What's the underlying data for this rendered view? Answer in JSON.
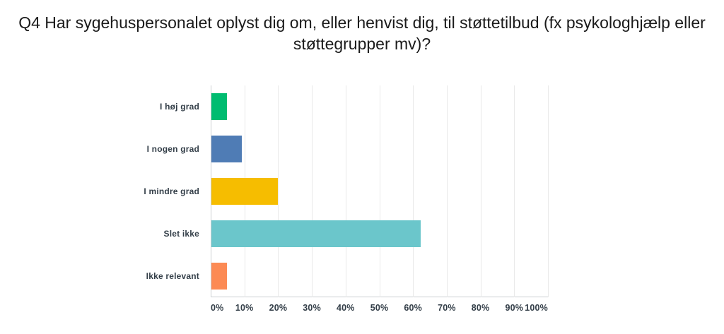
{
  "title": "Q4 Har sygehuspersonalet oplyst dig om, eller henvist dig, til støttetilbud (fx psykologhjælp eller støttegrupper mv)?",
  "chart_data": {
    "type": "bar",
    "orientation": "horizontal",
    "title": "Q4 Har sygehuspersonalet oplyst dig om, eller henvist dig, til støttetilbud (fx psykologhjælp eller støttegrupper mv)?",
    "categories": [
      "I høj grad",
      "I nogen grad",
      "I mindre grad",
      "Slet ikke",
      "Ikke relevant"
    ],
    "values": [
      4.55,
      9.09,
      19.7,
      62.12,
      4.55
    ],
    "value_unit": "%",
    "bar_colors": [
      "#00bc70",
      "#4f7cb5",
      "#f6bd00",
      "#6bc6cb",
      "#fc8a54"
    ],
    "x_ticks": [
      "0%",
      "10%",
      "20%",
      "30%",
      "40%",
      "50%",
      "60%",
      "70%",
      "80%",
      "90%",
      "100%"
    ],
    "xlim": [
      0,
      100
    ],
    "xlabel": "",
    "ylabel": "",
    "grid": "vertical gridlines every 10%",
    "legend": "none"
  },
  "palette": {
    "title_text": "#1a1a1a",
    "axis_label_text": "#333e48",
    "gridline": "#e9e9e9",
    "axis_line": "#cbcfd2",
    "background": "#ffffff"
  }
}
